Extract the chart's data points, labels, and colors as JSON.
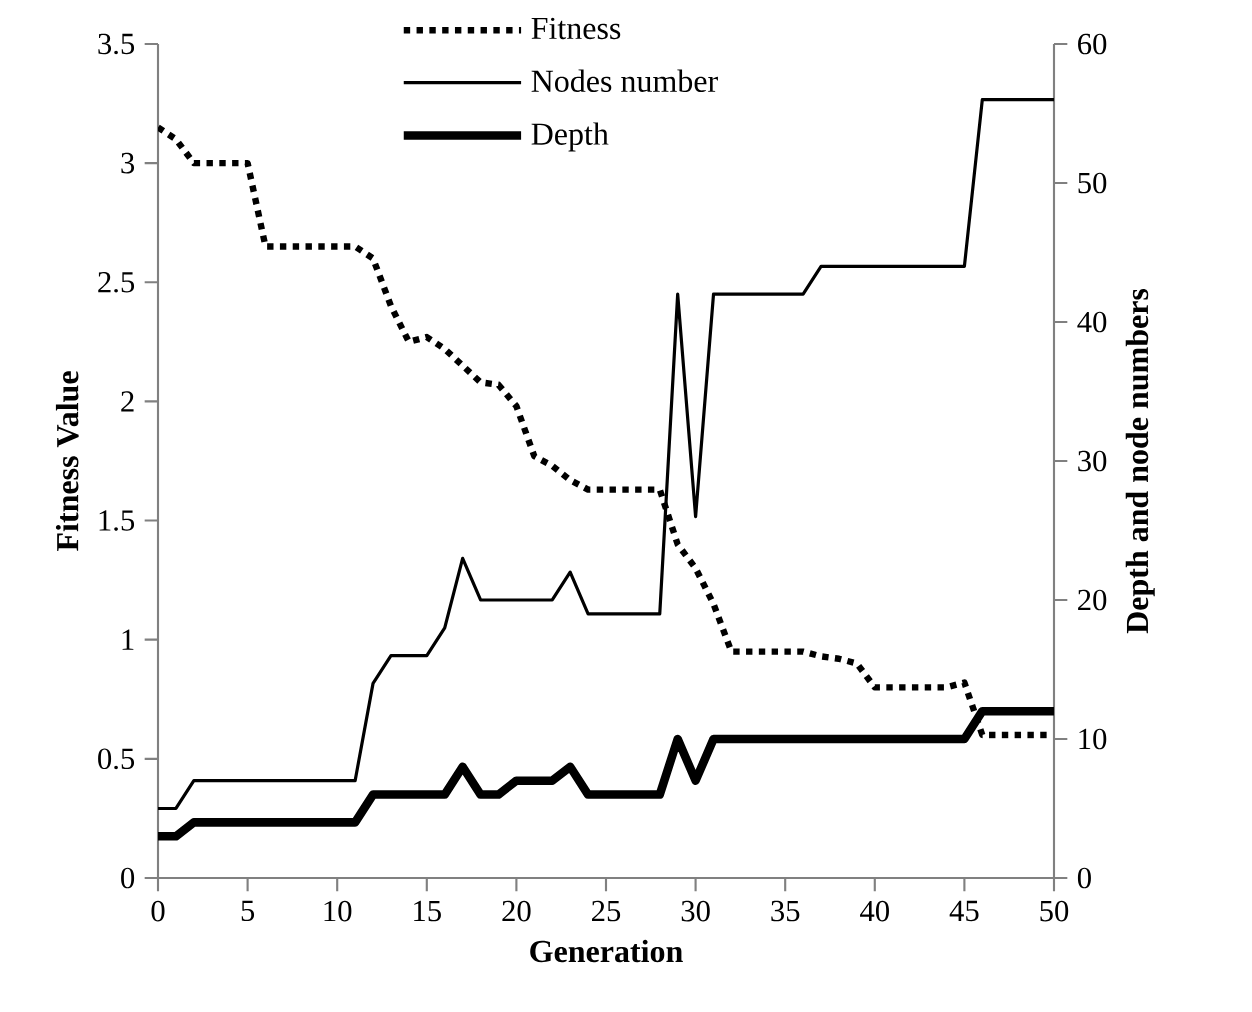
{
  "chart_data": {
    "type": "line",
    "xlabel": "Generation",
    "ylabel": "Fitness Value",
    "y2label": "Depth and node numbers",
    "x": [
      0,
      1,
      2,
      3,
      4,
      5,
      6,
      7,
      8,
      9,
      10,
      11,
      12,
      13,
      14,
      15,
      16,
      17,
      18,
      19,
      20,
      21,
      22,
      23,
      24,
      25,
      26,
      27,
      28,
      29,
      30,
      31,
      32,
      33,
      34,
      35,
      36,
      37,
      38,
      39,
      40,
      41,
      42,
      43,
      44,
      45,
      46,
      47,
      48,
      49,
      50
    ],
    "series": [
      {
        "name": "Fitness",
        "color": "#000000",
        "line_style": "dotted",
        "values": [
          3.15,
          3.1,
          3.0,
          3.0,
          3.0,
          3.0,
          2.65,
          2.65,
          2.65,
          2.65,
          2.65,
          2.65,
          2.6,
          2.4,
          2.25,
          2.27,
          2.22,
          2.15,
          2.08,
          2.07,
          1.98,
          1.77,
          1.73,
          1.67,
          1.63,
          1.63,
          1.63,
          1.63,
          1.63,
          1.4,
          1.3,
          1.15,
          0.95,
          0.95,
          0.95,
          0.95,
          0.95,
          0.93,
          0.92,
          0.9,
          0.8,
          0.8,
          0.8,
          0.8,
          0.8,
          0.82,
          0.6,
          0.6,
          0.6,
          0.6,
          0.6
        ]
      },
      {
        "name": "Nodes number",
        "color": "#000000",
        "line_style": "solid",
        "axis": "y2",
        "values": [
          5,
          5,
          7,
          7,
          7,
          7,
          7,
          7,
          7,
          7,
          7,
          7,
          14,
          16,
          16,
          16,
          18,
          23,
          20,
          20,
          20,
          20,
          20,
          22,
          19,
          19,
          19,
          19,
          19,
          42,
          26,
          42,
          42,
          42,
          42,
          42,
          42,
          44,
          44,
          44,
          44,
          44,
          44,
          44,
          44,
          44,
          56,
          56,
          56,
          56,
          56
        ]
      },
      {
        "name": "Depth",
        "color": "#000000",
        "line_style": "solid",
        "axis": "y2",
        "values": [
          3,
          3,
          4,
          4,
          4,
          4,
          4,
          4,
          4,
          4,
          4,
          4,
          6,
          6,
          6,
          6,
          6,
          8,
          6,
          6,
          7,
          7,
          7,
          8,
          6,
          6,
          6,
          6,
          6,
          10,
          7,
          10,
          10,
          10,
          10,
          10,
          10,
          10,
          10,
          10,
          10,
          10,
          10,
          10,
          10,
          10,
          12,
          12,
          12,
          12,
          12
        ]
      }
    ],
    "xlim": [
      0,
      50
    ],
    "xticks": [
      0,
      5,
      10,
      15,
      20,
      25,
      30,
      35,
      40,
      45,
      50
    ],
    "ylim": [
      0,
      3.5
    ],
    "yticks": [
      0,
      0.5,
      1,
      1.5,
      2,
      2.5,
      3,
      3.5
    ],
    "y2lim": [
      0,
      60
    ],
    "y2ticks": [
      0,
      10,
      20,
      30,
      40,
      50,
      60
    ],
    "grid": false,
    "legend": "top",
    "marker": "none"
  }
}
